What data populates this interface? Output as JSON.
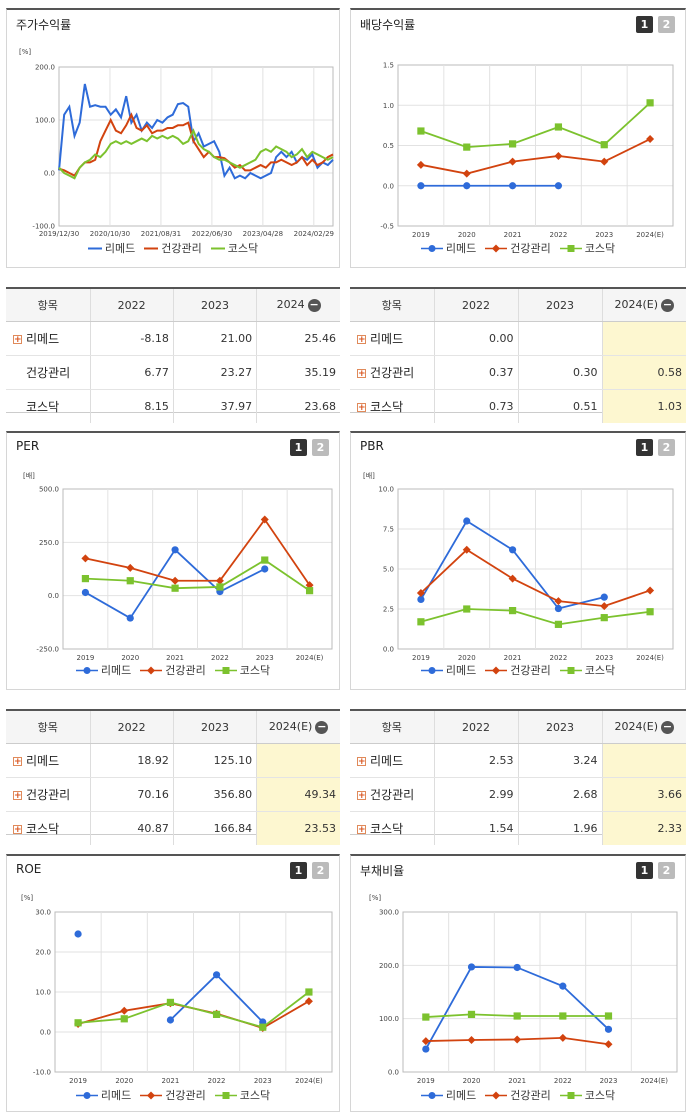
{
  "colors": {
    "remed": "#2e6bd9",
    "health": "#d2430f",
    "kosdaq": "#7cc22e"
  },
  "series_names": [
    "리메드",
    "건강관리",
    "코스닥"
  ],
  "panels": {
    "stock": {
      "title": "주가수익률",
      "unit": "[%]"
    },
    "div": {
      "title": "배당수익률",
      "btn1": "1",
      "btn2": "2"
    },
    "per": {
      "title": "PER",
      "unit": "[배]",
      "btn1": "1",
      "btn2": "2"
    },
    "pbr": {
      "title": "PBR",
      "unit": "[배]",
      "btn1": "1",
      "btn2": "2"
    },
    "roe": {
      "title": "ROE",
      "unit": "[%]",
      "btn1": "1",
      "btn2": "2"
    },
    "debt": {
      "title": "부채비율",
      "unit": "[%]",
      "btn1": "1",
      "btn2": "2"
    }
  },
  "tables": {
    "stock": {
      "headers": [
        "항목",
        "2022",
        "2023",
        "2024"
      ],
      "rows": [
        {
          "name": "리메드",
          "vals": [
            "-8.18",
            "21.00",
            "25.46"
          ]
        },
        {
          "name": "건강관리",
          "vals": [
            "6.77",
            "23.27",
            "35.19"
          ]
        },
        {
          "name": "코스닥",
          "vals": [
            "8.15",
            "37.97",
            "23.68"
          ]
        }
      ]
    },
    "div": {
      "headers": [
        "항목",
        "2022",
        "2023",
        "2024(E)"
      ],
      "rows": [
        {
          "name": "리메드",
          "vals": [
            "0.00",
            "",
            ""
          ]
        },
        {
          "name": "건강관리",
          "vals": [
            "0.37",
            "0.30",
            "0.58"
          ]
        },
        {
          "name": "코스닥",
          "vals": [
            "0.73",
            "0.51",
            "1.03"
          ]
        }
      ]
    },
    "per": {
      "headers": [
        "항목",
        "2022",
        "2023",
        "2024(E)"
      ],
      "rows": [
        {
          "name": "리메드",
          "vals": [
            "18.92",
            "125.10",
            ""
          ]
        },
        {
          "name": "건강관리",
          "vals": [
            "70.16",
            "356.80",
            "49.34"
          ]
        },
        {
          "name": "코스닥",
          "vals": [
            "40.87",
            "166.84",
            "23.53"
          ]
        }
      ]
    },
    "pbr": {
      "headers": [
        "항목",
        "2022",
        "2023",
        "2024(E)"
      ],
      "rows": [
        {
          "name": "리메드",
          "vals": [
            "2.53",
            "3.24",
            ""
          ]
        },
        {
          "name": "건강관리",
          "vals": [
            "2.99",
            "2.68",
            "3.66"
          ]
        },
        {
          "name": "코스닥",
          "vals": [
            "1.54",
            "1.96",
            "2.33"
          ]
        }
      ]
    }
  },
  "chart_data": [
    {
      "id": "stock",
      "type": "line",
      "title": "주가수익률",
      "ylabel": "[%]",
      "ylim": [
        -100,
        200
      ],
      "yticks": [
        "200.0",
        "100.0",
        "0.0",
        "-100.0"
      ],
      "xticks": [
        "2019/12/30",
        "2020/10/30",
        "2021/08/31",
        "2022/06/30",
        "2023/04/28",
        "2024/02/29"
      ],
      "x_range": [
        0,
        53
      ],
      "series": [
        {
          "name": "리메드",
          "values": [
            5,
            110,
            125,
            70,
            95,
            168,
            125,
            128,
            125,
            125,
            110,
            120,
            105,
            145,
            95,
            110,
            80,
            95,
            85,
            100,
            95,
            105,
            110,
            130,
            132,
            125,
            60,
            75,
            50,
            55,
            60,
            40,
            -5,
            10,
            -10,
            -5,
            -10,
            0,
            -5,
            -10,
            -5,
            0,
            30,
            40,
            30,
            40,
            20,
            30,
            25,
            35,
            10,
            20,
            15,
            25
          ]
        },
        {
          "name": "건강관리",
          "values": [
            8,
            5,
            0,
            -5,
            10,
            20,
            20,
            25,
            60,
            80,
            100,
            80,
            75,
            90,
            110,
            85,
            80,
            90,
            75,
            80,
            80,
            85,
            85,
            90,
            90,
            95,
            60,
            45,
            30,
            40,
            30,
            30,
            28,
            20,
            10,
            15,
            5,
            5,
            10,
            15,
            10,
            20,
            20,
            25,
            20,
            15,
            20,
            30,
            15,
            25,
            15,
            20,
            30,
            35
          ]
        },
        {
          "name": "코스닥",
          "values": [
            10,
            0,
            -5,
            -10,
            10,
            20,
            25,
            35,
            30,
            40,
            55,
            60,
            55,
            60,
            55,
            60,
            65,
            60,
            70,
            65,
            70,
            65,
            70,
            65,
            55,
            60,
            80,
            55,
            45,
            40,
            30,
            25,
            25,
            20,
            15,
            10,
            15,
            20,
            25,
            40,
            45,
            40,
            50,
            45,
            40,
            30,
            35,
            45,
            30,
            40,
            35,
            30,
            25,
            30
          ]
        }
      ]
    },
    {
      "id": "div",
      "type": "line",
      "title": "배당수익률",
      "ylim": [
        -0.5,
        1.5
      ],
      "yticks": [
        "1.5",
        "1.0",
        "0.5",
        "0.0",
        "-0.5"
      ],
      "categories": [
        "2019",
        "2020",
        "2021",
        "2022",
        "2023",
        "2024(E)"
      ],
      "series": [
        {
          "name": "리메드",
          "values": [
            0.0,
            0.0,
            0.0,
            0.0,
            null,
            null
          ]
        },
        {
          "name": "건강관리",
          "values": [
            0.26,
            0.15,
            0.3,
            0.37,
            0.3,
            0.58
          ]
        },
        {
          "name": "코스닥",
          "values": [
            0.68,
            0.48,
            0.52,
            0.73,
            0.51,
            1.03
          ]
        }
      ]
    },
    {
      "id": "per",
      "type": "line",
      "title": "PER",
      "ylabel": "[배]",
      "ylim": [
        -250,
        500
      ],
      "yticks": [
        "500.0",
        "250.0",
        "0.0",
        "-250.0"
      ],
      "categories": [
        "2019",
        "2020",
        "2021",
        "2022",
        "2023",
        "2024(E)"
      ],
      "series": [
        {
          "name": "리메드",
          "values": [
            15,
            -105,
            215,
            18.92,
            125.1,
            null
          ]
        },
        {
          "name": "건강관리",
          "values": [
            175,
            130,
            70,
            70.16,
            356.8,
            49.34
          ]
        },
        {
          "name": "코스닥",
          "values": [
            80,
            70,
            35,
            40.87,
            166.84,
            23.53
          ]
        }
      ]
    },
    {
      "id": "pbr",
      "type": "line",
      "title": "PBR",
      "ylabel": "[배]",
      "ylim": [
        0,
        10
      ],
      "yticks": [
        "10.0",
        "7.5",
        "5.0",
        "2.5",
        "0.0"
      ],
      "categories": [
        "2019",
        "2020",
        "2021",
        "2022",
        "2023",
        "2024(E)"
      ],
      "series": [
        {
          "name": "리메드",
          "values": [
            3.1,
            8.0,
            6.2,
            2.53,
            3.24,
            null
          ]
        },
        {
          "name": "건강관리",
          "values": [
            3.5,
            6.2,
            4.4,
            2.99,
            2.68,
            3.66
          ]
        },
        {
          "name": "코스닥",
          "values": [
            1.7,
            2.5,
            2.4,
            1.54,
            1.96,
            2.33
          ]
        }
      ]
    },
    {
      "id": "roe",
      "type": "line",
      "title": "ROE",
      "ylabel": "[%]",
      "ylim": [
        -10,
        30
      ],
      "yticks": [
        "30.0",
        "20.0",
        "10.0",
        "0.0",
        "-10.0"
      ],
      "categories": [
        "2019",
        "2020",
        "2021",
        "2022",
        "2023",
        "2024(E)"
      ],
      "series": [
        {
          "name": "리메드",
          "values": [
            24.5,
            null,
            3.0,
            14.3,
            2.5,
            null
          ]
        },
        {
          "name": "건강관리",
          "values": [
            2.0,
            5.3,
            7.2,
            4.6,
            1.0,
            7.7
          ]
        },
        {
          "name": "코스닥",
          "values": [
            2.3,
            3.3,
            7.4,
            4.4,
            1.2,
            10.0
          ]
        }
      ]
    },
    {
      "id": "debt",
      "type": "line",
      "title": "부채비율",
      "ylabel": "[%]",
      "ylim": [
        0,
        300
      ],
      "yticks": [
        "300.0",
        "200.0",
        "100.0",
        "0.0"
      ],
      "categories": [
        "2019",
        "2020",
        "2021",
        "2022",
        "2023",
        "2024(E)"
      ],
      "series": [
        {
          "name": "리메드",
          "values": [
            43,
            197,
            196,
            161,
            80,
            null
          ]
        },
        {
          "name": "건강관리",
          "values": [
            58,
            60,
            61,
            64,
            52,
            null
          ]
        },
        {
          "name": "코스닥",
          "values": [
            103,
            108,
            105,
            105,
            105,
            null
          ]
        }
      ]
    }
  ]
}
